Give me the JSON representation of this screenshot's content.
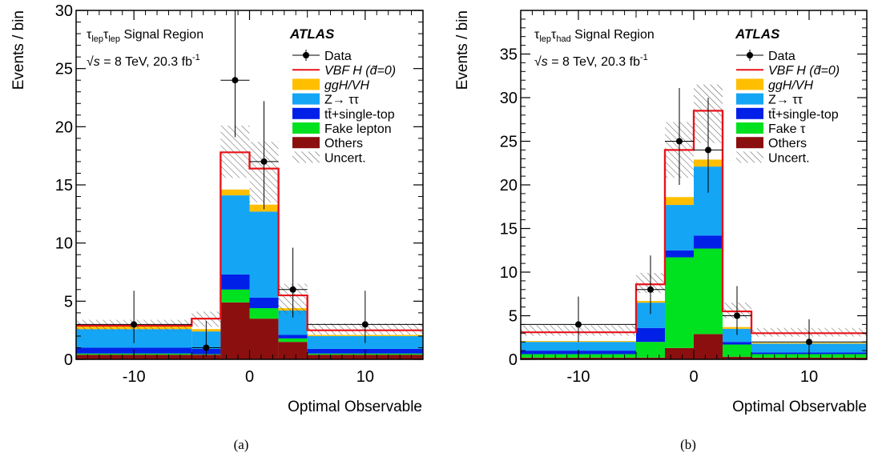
{
  "panels": [
    {
      "caption": "(a)",
      "region_label": {
        "main1": "τ",
        "sub1": "lep",
        "main2": "τ",
        "sub2": "lep",
        "text": " Signal Region"
      },
      "energy_label": {
        "sqrt": "√",
        "s": "s",
        "text": " = 8 TeV, 20.3 fb",
        "sup": "-1"
      },
      "experiment": "ATLAS",
      "chart_data": {
        "type": "bar",
        "xlabel": "Optimal Observable",
        "ylabel": "Events / bin",
        "xlim": [
          -15,
          15
        ],
        "ylim": [
          0,
          30
        ],
        "xticks": [
          -10,
          0,
          10
        ],
        "xtick_labels": [
          "-10",
          "0",
          "10"
        ],
        "yticks": [
          0,
          5,
          10,
          15,
          20,
          25,
          30
        ],
        "ytick_labels": [
          "0",
          "5",
          "10",
          "15",
          "20",
          "25",
          "30"
        ],
        "bins": [
          [
            -15,
            -5
          ],
          [
            -5,
            -2.5
          ],
          [
            -2.5,
            0
          ],
          [
            0,
            2.5
          ],
          [
            2.5,
            5
          ],
          [
            5,
            15
          ]
        ],
        "stack_series": [
          {
            "name": "Others",
            "color": "#8b0f0f",
            "values": [
              0.4,
              0.4,
              4.9,
              3.5,
              1.5,
              0.4
            ]
          },
          {
            "name": "Fake lepton",
            "color": "#00e21f",
            "values": [
              0.1,
              0.05,
              1.1,
              0.9,
              0.3,
              0.1
            ]
          },
          {
            "name": "tt̄+single-top",
            "color": "#0020e8",
            "values": [
              0.5,
              0.45,
              1.3,
              0.9,
              0.3,
              0.4
            ]
          },
          {
            "name": "Z→ ττ",
            "color": "#14a5f5",
            "values": [
              1.6,
              1.5,
              6.8,
              7.4,
              2.1,
              1.1
            ]
          },
          {
            "name": "ggH/VH",
            "color": "#ffbf00",
            "values": [
              0.25,
              0.2,
              0.5,
              0.6,
              0.2,
              0.1
            ]
          }
        ],
        "signal": {
          "name": "VBF H (d̃=0)",
          "color": "#e8121a",
          "values": [
            2.9,
            3.5,
            17.8,
            16.4,
            5.5,
            2.5
          ]
        },
        "uncertainty": {
          "name": "Uncert.",
          "lo": [
            2.5,
            2.8,
            15.6,
            13.5,
            3.9,
            2.1
          ],
          "hi": [
            3.4,
            4.1,
            20.1,
            18.7,
            6.5,
            3.1
          ]
        },
        "data": {
          "name": "Data",
          "x": [
            -10,
            -3.75,
            -1.25,
            1.25,
            3.75,
            10
          ],
          "y": [
            3,
            1,
            24,
            17,
            6,
            3
          ],
          "err_lo": [
            1.6,
            0.8,
            4.9,
            4.1,
            2.4,
            1.6
          ],
          "err_hi": [
            2.9,
            2.3,
            6.0,
            5.2,
            3.6,
            2.9
          ]
        },
        "legend_items": [
          {
            "label": "Data",
            "kind": "data"
          },
          {
            "label": "VBF H (d̃=0)",
            "kind": "line",
            "color": "#e8121a"
          },
          {
            "label": "ggH/VH",
            "kind": "fill",
            "color": "#ffbf00"
          },
          {
            "label": "Z→ ττ",
            "kind": "fill",
            "color": "#14a5f5"
          },
          {
            "label": "tt̄+single-top",
            "kind": "fill",
            "color": "#0020e8"
          },
          {
            "label": "Fake lepton",
            "kind": "fill",
            "color": "#00e21f"
          },
          {
            "label": "Others",
            "kind": "fill",
            "color": "#8b0f0f"
          },
          {
            "label": "Uncert.",
            "kind": "hatch"
          }
        ]
      }
    },
    {
      "caption": "(b)",
      "region_label": {
        "main1": "τ",
        "sub1": "lep",
        "main2": "τ",
        "sub2": "had",
        "text": " Signal Region"
      },
      "energy_label": {
        "sqrt": "√",
        "s": "s",
        "text": " = 8 TeV, 20.3 fb",
        "sup": "-1"
      },
      "experiment": "ATLAS",
      "chart_data": {
        "type": "bar",
        "xlabel": "Optimal Observable",
        "ylabel": "Events / bin",
        "xlim": [
          -15,
          15
        ],
        "ylim": [
          0,
          40
        ],
        "xticks": [
          -10,
          0,
          10
        ],
        "xtick_labels": [
          "-10",
          "0",
          "10"
        ],
        "yticks": [
          0,
          5,
          10,
          15,
          20,
          25,
          30,
          35
        ],
        "ytick_labels": [
          "0",
          "5",
          "10",
          "15",
          "20",
          "25",
          "30",
          "35"
        ],
        "bins": [
          [
            -15,
            -5
          ],
          [
            -5,
            -2.5
          ],
          [
            -2.5,
            0
          ],
          [
            0,
            2.5
          ],
          [
            2.5,
            5
          ],
          [
            5,
            15
          ]
        ],
        "stack_series": [
          {
            "name": "Others",
            "color": "#8b0f0f",
            "values": [
              0.2,
              0.2,
              1.3,
              2.9,
              0.3,
              0.2
            ]
          },
          {
            "name": "Fake τ",
            "color": "#00e21f",
            "values": [
              0.4,
              1.8,
              10.4,
              9.8,
              1.4,
              0.4
            ]
          },
          {
            "name": "tt̄+single-top",
            "color": "#0020e8",
            "values": [
              0.4,
              1.6,
              0.8,
              1.5,
              0.3,
              0.2
            ]
          },
          {
            "name": "Z→ ττ",
            "color": "#14a5f5",
            "values": [
              1.0,
              2.9,
              5.2,
              7.9,
              1.5,
              1.0
            ]
          },
          {
            "name": "ggH/VH",
            "color": "#ffbf00",
            "values": [
              0.1,
              0.2,
              0.9,
              0.8,
              0.2,
              0.1
            ]
          }
        ],
        "signal": {
          "name": "VBF H (d̃=0)",
          "color": "#e8121a",
          "values": [
            3.1,
            8.6,
            24.0,
            28.5,
            5.5,
            3.0
          ]
        },
        "uncertainty": {
          "name": "Uncert.",
          "lo": [
            2.7,
            7.6,
            20.8,
            24.8,
            4.7,
            2.6
          ],
          "hi": [
            3.9,
            9.9,
            27.2,
            31.5,
            6.5,
            3.6
          ]
        },
        "data": {
          "name": "Data",
          "x": [
            -10,
            -3.75,
            -1.25,
            1.25,
            3.75,
            10
          ],
          "y": [
            4,
            8,
            25,
            24,
            5,
            2
          ],
          "err_lo": [
            2.0,
            2.8,
            5.0,
            4.9,
            2.2,
            1.3
          ],
          "err_hi": [
            3.2,
            3.9,
            6.1,
            6.0,
            3.4,
            2.6
          ]
        },
        "legend_items": [
          {
            "label": "Data",
            "kind": "data"
          },
          {
            "label": "VBF H (d̃=0)",
            "kind": "line",
            "color": "#e8121a"
          },
          {
            "label": "ggH/VH",
            "kind": "fill",
            "color": "#ffbf00"
          },
          {
            "label": "Z→ ττ",
            "kind": "fill",
            "color": "#14a5f5"
          },
          {
            "label": "tt̄+single-top",
            "kind": "fill",
            "color": "#0020e8"
          },
          {
            "label": "Fake τ",
            "kind": "fill",
            "color": "#00e21f"
          },
          {
            "label": "Others",
            "kind": "fill",
            "color": "#8b0f0f"
          },
          {
            "label": "Uncert.",
            "kind": "hatch"
          }
        ]
      }
    }
  ]
}
